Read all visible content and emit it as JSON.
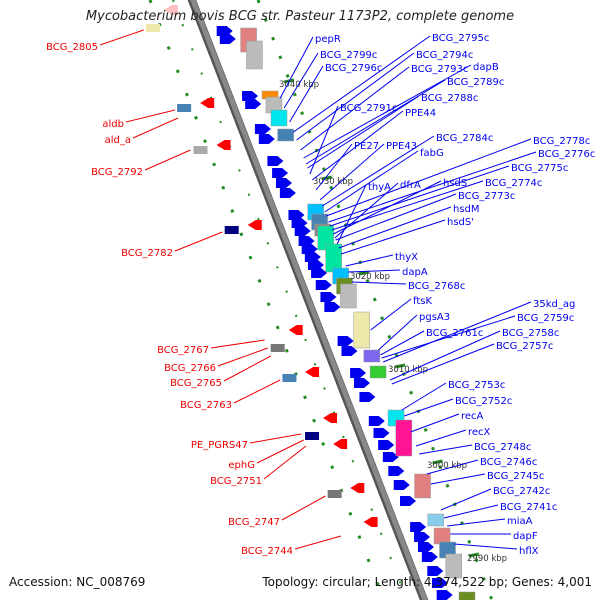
{
  "title": "Mycobacterium bovis BCG str. Pasteur 1173P2, complete genome",
  "footer": {
    "accession": "Accession: NC_008769",
    "topology": "Topology: circular; Length: 4,374,522 bp; Genes: 4,001"
  },
  "colors": {
    "forward": "#0000ee",
    "reverse": "#ee0000",
    "backbone": "#888888",
    "ticks": "#228b22"
  },
  "kbp_ticks": [
    "3040 kbp",
    "3030 kbp",
    "3020 kbp",
    "3010 kbp",
    "3000 kbp",
    "2990 kbp"
  ],
  "right_labels": [
    "pepR",
    "BCG_2799c",
    "BCG_2796c",
    "BCG_2795c",
    "BCG_2794c",
    "BCG_2793c",
    "dapB",
    "BCG_2789c",
    "BCG_2788c",
    "BCG_2791c",
    "PPE44",
    "PE27",
    "PPE43",
    "BCG_2784c",
    "fabG",
    "BCG_2778c",
    "BCG_2776c",
    "BCG_2775c",
    "BCG_2774c",
    "hsdS",
    "thyA",
    "dfrA",
    "BCG_2773c",
    "hsdM",
    "hsdS'",
    "thyX",
    "dapA",
    "BCG_2768c",
    "ftsK",
    "pgsA3",
    "35kd_ag",
    "BCG_2759c",
    "BCG_2758c",
    "BCG_2757c",
    "BCG_2761c",
    "BCG_2753c",
    "BCG_2752c",
    "recA",
    "recX",
    "BCG_2748c",
    "BCG_2746c",
    "BCG_2745c",
    "BCG_2742c",
    "BCG_2741c",
    "miaA",
    "dapF",
    "hflX"
  ],
  "left_labels": [
    "BCG_2805",
    "aldb",
    "ald_a",
    "BCG_2792",
    "BCG_2782",
    "BCG_2767",
    "BCG_2766",
    "BCG_2765",
    "BCG_2763",
    "PE_PGRS47",
    "ephG",
    "BCG_2751",
    "BCG_2747",
    "BCG_2744"
  ]
}
